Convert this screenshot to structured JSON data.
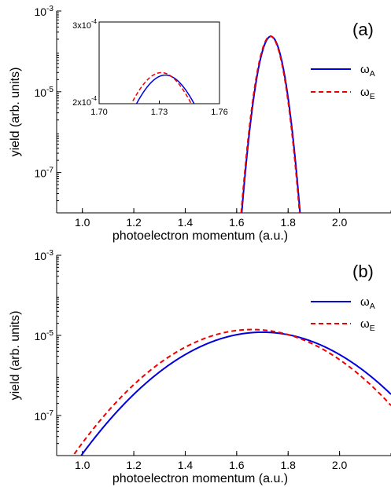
{
  "chart_data": [
    {
      "type": "line",
      "panel_label": "(a)",
      "xlabel": "photoelectron momentum (a.u.)",
      "ylabel": "yield (arb. units)",
      "xlim": [
        0.9,
        2.2
      ],
      "ylim": [
        1e-08,
        0.001
      ],
      "yscale": "log",
      "x_ticks": [
        "1.0",
        "1.2",
        "1.4",
        "1.6",
        "1.8",
        "2.0"
      ],
      "y_ticks": [
        {
          "base": "10",
          "exp": "-3"
        },
        {
          "base": "10",
          "exp": "-5"
        },
        {
          "base": "10",
          "exp": "-7"
        }
      ],
      "legend_position": "right",
      "series": [
        {
          "name": "ω",
          "subscript": "A",
          "color": "#0000dd",
          "style": "solid",
          "curve": {
            "model": "log-parabola",
            "peak_x": 1.733,
            "peak_y": 0.000235,
            "curvature": 340
          }
        },
        {
          "name": "ω",
          "subscript": "E",
          "color": "#ee0000",
          "style": "dashed",
          "curve": {
            "model": "log-parabola",
            "peak_x": 1.731,
            "peak_y": 0.000238,
            "curvature": 340
          }
        }
      ],
      "inset": {
        "xlim": [
          1.7,
          1.76
        ],
        "ylim": [
          0.0002,
          0.0003
        ],
        "x_ticks": [
          "1.70",
          "1.73",
          "1.76"
        ],
        "y_ticks": [
          {
            "mant": "2x",
            "base": "10",
            "exp": "-4"
          },
          {
            "mant": "3x",
            "base": "10",
            "exp": "-4"
          }
        ]
      }
    },
    {
      "type": "line",
      "panel_label": "(b)",
      "xlabel": "photoelectron momentum (a.u.)",
      "ylabel": "yield (arb. units)",
      "xlim": [
        0.9,
        2.2
      ],
      "ylim": [
        1e-08,
        0.001
      ],
      "yscale": "log",
      "x_ticks": [
        "1.0",
        "1.2",
        "1.4",
        "1.6",
        "1.8",
        "2.0"
      ],
      "y_ticks": [
        {
          "base": "10",
          "exp": "-3"
        },
        {
          "base": "10",
          "exp": "-5"
        },
        {
          "base": "10",
          "exp": "-7"
        }
      ],
      "legend_position": "right",
      "series": [
        {
          "name": "ω",
          "subscript": "A",
          "color": "#0000dd",
          "style": "solid",
          "curve": {
            "model": "log-parabola",
            "peak_x": 1.7,
            "peak_y": 1.2e-05,
            "curvature": 6.2
          }
        },
        {
          "name": "ω",
          "subscript": "E",
          "color": "#ee0000",
          "style": "dashed",
          "curve": {
            "model": "log-parabola",
            "peak_x": 1.66,
            "peak_y": 1.4e-05,
            "curvature": 6.5
          }
        }
      ]
    }
  ]
}
